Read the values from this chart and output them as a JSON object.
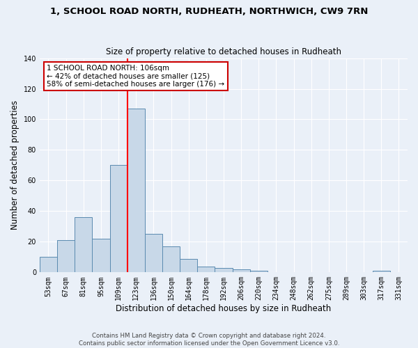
{
  "title1": "1, SCHOOL ROAD NORTH, RUDHEATH, NORTHWICH, CW9 7RN",
  "title2": "Size of property relative to detached houses in Rudheath",
  "xlabel": "Distribution of detached houses by size in Rudheath",
  "ylabel": "Number of detached properties",
  "bin_labels": [
    "53sqm",
    "67sqm",
    "81sqm",
    "95sqm",
    "109sqm",
    "123sqm",
    "136sqm",
    "150sqm",
    "164sqm",
    "178sqm",
    "192sqm",
    "206sqm",
    "220sqm",
    "234sqm",
    "248sqm",
    "262sqm",
    "275sqm",
    "289sqm",
    "303sqm",
    "317sqm",
    "331sqm"
  ],
  "bin_values": [
    10,
    21,
    36,
    22,
    70,
    107,
    25,
    17,
    9,
    4,
    3,
    2,
    1,
    0,
    0,
    0,
    0,
    0,
    0,
    1,
    0
  ],
  "bar_color": "#c8d8e8",
  "bar_edge_color": "#5a8ab0",
  "background_color": "#eaf0f8",
  "grid_color": "#ffffff",
  "red_line_x": 4.5,
  "annotation_line1": "1 SCHOOL ROAD NORTH: 106sqm",
  "annotation_line2": "← 42% of detached houses are smaller (125)",
  "annotation_line3": "58% of semi-detached houses are larger (176) →",
  "annotation_box_color": "#ffffff",
  "annotation_box_edge": "#cc0000",
  "footnote1": "Contains HM Land Registry data © Crown copyright and database right 2024.",
  "footnote2": "Contains public sector information licensed under the Open Government Licence v3.0.",
  "ylim": [
    0,
    140
  ],
  "yticks": [
    0,
    20,
    40,
    60,
    80,
    100,
    120,
    140
  ]
}
